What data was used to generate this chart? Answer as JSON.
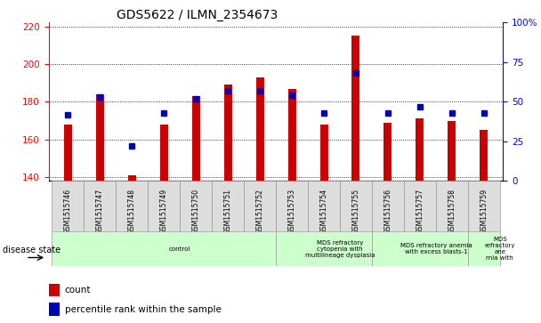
{
  "title": "GDS5622 / ILMN_2354673",
  "samples": [
    "GSM1515746",
    "GSM1515747",
    "GSM1515748",
    "GSM1515749",
    "GSM1515750",
    "GSM1515751",
    "GSM1515752",
    "GSM1515753",
    "GSM1515754",
    "GSM1515755",
    "GSM1515756",
    "GSM1515757",
    "GSM1515758",
    "GSM1515759"
  ],
  "counts": [
    168,
    184,
    141,
    168,
    183,
    189,
    193,
    187,
    168,
    215,
    169,
    171,
    170,
    165
  ],
  "percentile_ranks": [
    42,
    53,
    22,
    43,
    52,
    57,
    57,
    54,
    43,
    68,
    43,
    47,
    43,
    43
  ],
  "ylim_left": [
    138,
    222
  ],
  "ylim_right": [
    0,
    100
  ],
  "yticks_left": [
    140,
    160,
    180,
    200,
    220
  ],
  "yticks_right": [
    0,
    25,
    50,
    75,
    100
  ],
  "bar_color": "#CC0000",
  "marker_color": "#0000BB",
  "bg_color": "#FFFFFF",
  "plot_bg": "#FFFFFF",
  "disease_groups": [
    {
      "label": "control",
      "start": 0,
      "end": 7
    },
    {
      "label": "MDS refractory\ncytopenia with\nmultilineage dysplasia",
      "start": 7,
      "end": 10
    },
    {
      "label": "MDS refractory anemia\nwith excess blasts-1",
      "start": 10,
      "end": 13
    },
    {
      "label": "MDS\nrefractory\nane\nrnia with",
      "start": 13,
      "end": 14
    }
  ],
  "group_color": "#CCFFCC",
  "legend_count_label": "count",
  "legend_pct_label": "percentile rank within the sample",
  "disease_state_label": "disease state"
}
